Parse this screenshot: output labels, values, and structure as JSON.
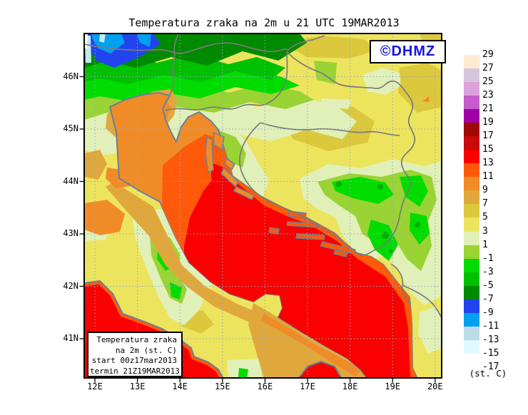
{
  "title": "Temperatura zraka na 2m u 21 UTC 19MAR2013",
  "watermark": {
    "label": "©DHMZ",
    "color": "#1414DC"
  },
  "info_box": {
    "lines": [
      "Temperatura zraka",
      "na 2m (st. C)",
      "start 00z17mar2013",
      "termin 21Z19MAR2013"
    ]
  },
  "axes": {
    "x_labels": [
      "12E",
      "13E",
      "14E",
      "15E",
      "16E",
      "17E",
      "18E",
      "19E",
      "20E"
    ],
    "y_labels": [
      "46N",
      "45N",
      "44N",
      "43N",
      "42N",
      "41N"
    ]
  },
  "scale": {
    "unit_label": "(st. C)",
    "labels": [
      "29",
      "27",
      "25",
      "23",
      "21",
      "19",
      "17",
      "15",
      "13",
      "11",
      "9",
      "7",
      "5",
      "3",
      "1",
      "-1",
      "-3",
      "-5",
      "-7",
      "-9",
      "-11",
      "-13",
      "-15",
      "-17"
    ],
    "colors": [
      "#FDEBD2",
      "#D6C6DC",
      "#DCA2DC",
      "#C45CCC",
      "#A000A8",
      "#A00808",
      "#C80A0A",
      "#FA0000",
      "#FF5A0A",
      "#F08C28",
      "#E0A83C",
      "#DCC83C",
      "#EDE45E",
      "#E0F0B8",
      "#9AD334",
      "#00DC00",
      "#00C000",
      "#008A00",
      "#2244EE",
      "#00A0F0",
      "#BCDCE8",
      "#E0F8FF"
    ]
  },
  "palette": {
    "frame": "#000000",
    "grid": "#8FA8C8",
    "coastline": "#6B7F99",
    "country_border": "#7A7A7A",
    "land_base": "#EDE45E",
    "sea_hot": "#FA0000"
  }
}
